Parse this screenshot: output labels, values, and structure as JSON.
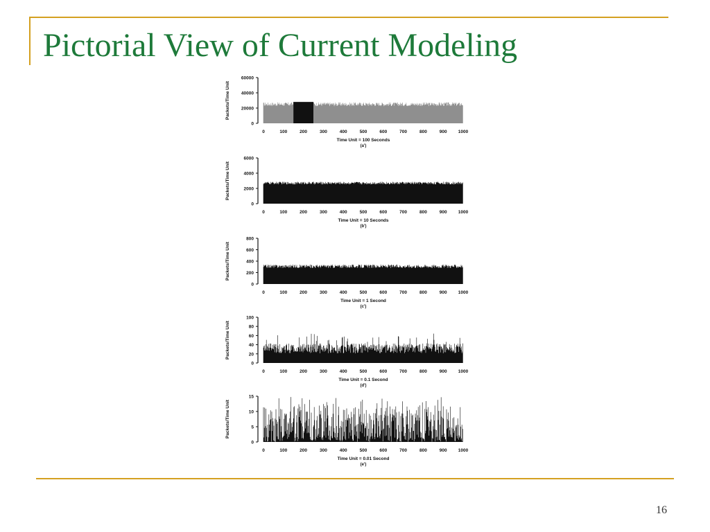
{
  "slide": {
    "title": "Pictorial View of Current Modeling",
    "page_number": "16"
  },
  "colors": {
    "title": "#1e7a3a",
    "frame": "#d4a020",
    "bars": "#111111"
  },
  "chart_data": [
    {
      "type": "bar",
      "id": "a",
      "style": "dense-noise",
      "x_ticks": [
        0,
        100,
        200,
        300,
        400,
        500,
        600,
        700,
        800,
        900,
        1000
      ],
      "xlim": [
        0,
        1000
      ],
      "y_ticks": [
        0,
        20000,
        40000,
        60000
      ],
      "ylim": [
        0,
        60000
      ],
      "ylabel": "Packets/Time Unit",
      "xlabel": "Time Unit = 100 Seconds",
      "panel_label": "(a')",
      "base": 25000,
      "jitter": 5000,
      "burst": [
        150,
        250,
        28000
      ]
    },
    {
      "type": "bar",
      "id": "b",
      "style": "dense",
      "x_ticks": [
        0,
        100,
        200,
        300,
        400,
        500,
        600,
        700,
        800,
        900,
        1000
      ],
      "xlim": [
        0,
        1000
      ],
      "y_ticks": [
        0,
        2000,
        4000,
        6000
      ],
      "ylim": [
        0,
        6000
      ],
      "ylabel": "Packets/Time Unit",
      "xlabel": "Time Unit = 10 Seconds",
      "panel_label": "(b')",
      "base": 2700,
      "jitter": 350
    },
    {
      "type": "bar",
      "id": "c",
      "style": "dense",
      "x_ticks": [
        0,
        100,
        200,
        300,
        400,
        500,
        600,
        700,
        800,
        900,
        1000
      ],
      "xlim": [
        0,
        1000
      ],
      "y_ticks": [
        0,
        200,
        400,
        600,
        800
      ],
      "ylim": [
        0,
        800
      ],
      "ylabel": "Packets/Time Unit",
      "xlabel": "Time Unit = 1 Second",
      "panel_label": "(c')",
      "base": 310,
      "jitter": 60
    },
    {
      "type": "bar",
      "id": "d",
      "style": "spiky",
      "x_ticks": [
        0,
        100,
        200,
        300,
        400,
        500,
        600,
        700,
        800,
        900,
        1000
      ],
      "xlim": [
        0,
        1000
      ],
      "y_ticks": [
        0,
        20,
        40,
        60,
        80,
        100
      ],
      "ylim": [
        0,
        100
      ],
      "ylabel": "Packets/Time Unit",
      "xlabel": "Time Unit = 0.1 Second",
      "panel_label": "(d')",
      "base": 32,
      "jitter": 22
    },
    {
      "type": "bar",
      "id": "e",
      "style": "sparse",
      "x_ticks": [
        0,
        100,
        200,
        300,
        400,
        500,
        600,
        700,
        800,
        900,
        1000
      ],
      "xlim": [
        0,
        1000
      ],
      "y_ticks": [
        0,
        5,
        10,
        15
      ],
      "ylim": [
        0,
        15
      ],
      "ylabel": "Packets/Time Unit",
      "xlabel": "Time Unit = 0.01 Second",
      "panel_label": "(e')",
      "base": 5,
      "jitter": 10
    }
  ]
}
